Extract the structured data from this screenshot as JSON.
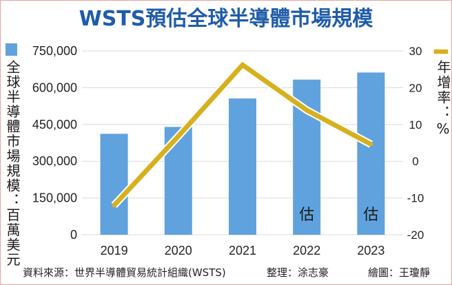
{
  "colors": {
    "title": "#1f5ca9",
    "bar": "#60a2dd",
    "line": "#d6b11e",
    "grid": "#dadada",
    "text": "#222222"
  },
  "chart_data": {
    "type": "bar",
    "title": "WSTS預估全球半導體市場規模",
    "categories": [
      "2019",
      "2020",
      "2021",
      "2022",
      "2023"
    ],
    "series": [
      {
        "type": "bar",
        "axis": "left",
        "values": [
          412000,
          440000,
          556000,
          633000,
          662000
        ]
      },
      {
        "type": "line",
        "axis": "right",
        "values": [
          -12.0,
          6.8,
          26.2,
          13.9,
          4.6
        ]
      }
    ],
    "ylabel": "全球半導體市場規模：百萬美元",
    "y2label": "年增率：%",
    "ylim": [
      0,
      750000
    ],
    "y2lim": [
      -20,
      30
    ],
    "yticks": [
      "0",
      "150,000",
      "300,000",
      "450,000",
      "600,000",
      "750,000"
    ],
    "y2ticks": [
      "-20",
      "-10",
      "0",
      "10",
      "20",
      "30"
    ],
    "annotations": [
      {
        "index": 3,
        "text": "估"
      },
      {
        "index": 4,
        "text": "估"
      }
    ],
    "grid": true,
    "legend": {
      "bar": "top-left",
      "line": "top-right"
    }
  },
  "footer": {
    "source": "資料來源：世界半導體貿易統計組織(WSTS)",
    "editor": "整理：涂志豪",
    "artist": "繪圖：王瓊靜"
  }
}
